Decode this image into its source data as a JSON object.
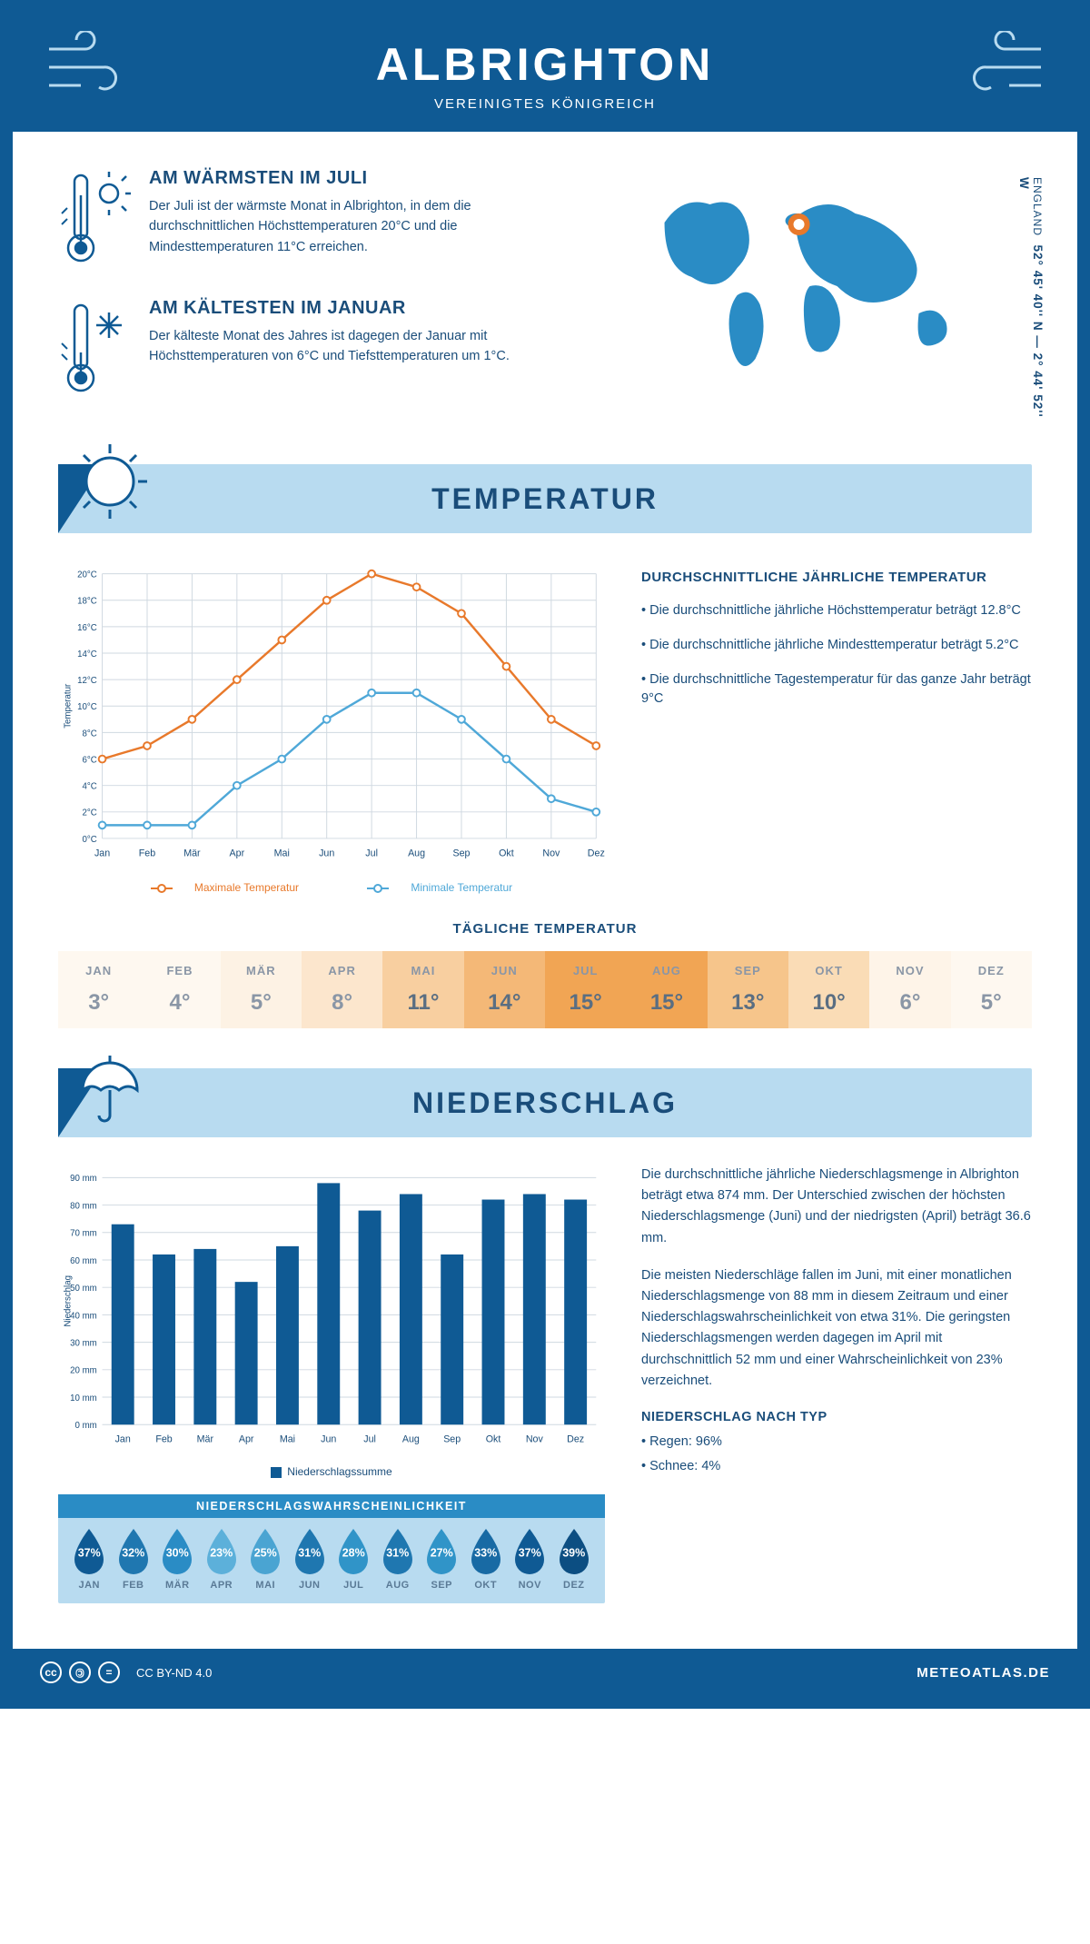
{
  "header": {
    "title": "ALBRIGHTON",
    "subtitle": "VEREINIGTES KÖNIGREICH"
  },
  "coords": {
    "lat": "52° 45' 40'' N — 2° 44' 52'' W",
    "country": "ENGLAND"
  },
  "colors": {
    "primary": "#0f5a94",
    "light": "#b8dbf0",
    "accent": "#2a8cc5",
    "orange": "#e8792b",
    "blue_line": "#4fa8d8",
    "grid": "#cfd8e0",
    "text": "#1a4d7a",
    "muted": "#8a96a6"
  },
  "warmest": {
    "title": "AM WÄRMSTEN IM JULI",
    "text": "Der Juli ist der wärmste Monat in Albrighton, in dem die durchschnittlichen Höchsttemperaturen 20°C und die Mindesttemperaturen 11°C erreichen."
  },
  "coldest": {
    "title": "AM KÄLTESTEN IM JANUAR",
    "text": "Der kälteste Monat des Jahres ist dagegen der Januar mit Höchsttemperaturen von 6°C und Tiefsttemperaturen um 1°C."
  },
  "months_short": [
    "Jan",
    "Feb",
    "Mär",
    "Apr",
    "Mai",
    "Jun",
    "Jul",
    "Aug",
    "Sep",
    "Okt",
    "Nov",
    "Dez"
  ],
  "months_upper": [
    "JAN",
    "FEB",
    "MÄR",
    "APR",
    "MAI",
    "JUN",
    "JUL",
    "AUG",
    "SEP",
    "OKT",
    "NOV",
    "DEZ"
  ],
  "temperature": {
    "section_title": "TEMPERATUR",
    "info_title": "DURCHSCHNITTLICHE JÄHRLICHE TEMPERATUR",
    "bullets": [
      "• Die durchschnittliche jährliche Höchsttemperatur beträgt 12.8°C",
      "• Die durchschnittliche jährliche Mindesttemperatur beträgt 5.2°C",
      "• Die durchschnittliche Tagestemperatur für das ganze Jahr beträgt 9°C"
    ],
    "chart": {
      "type": "line",
      "ylabel": "Temperatur",
      "ylim": [
        0,
        20
      ],
      "ytick_step": 2,
      "ytick_suffix": "°C",
      "max_series": {
        "label": "Maximale Temperatur",
        "color": "#e8792b",
        "values": [
          6,
          7,
          9,
          12,
          15,
          18,
          20,
          19,
          17,
          13,
          9,
          7
        ]
      },
      "min_series": {
        "label": "Minimale Temperatur",
        "color": "#4fa8d8",
        "values": [
          1,
          1,
          1,
          4,
          6,
          9,
          11,
          11,
          9,
          6,
          3,
          2
        ]
      }
    },
    "daily": {
      "title": "TÄGLICHE TEMPERATUR",
      "values": [
        3,
        4,
        5,
        8,
        11,
        14,
        15,
        15,
        13,
        10,
        6,
        5
      ],
      "cell_colors": [
        "#fef8f0",
        "#fef8f0",
        "#fdf2e4",
        "#fce6cd",
        "#f8cfa0",
        "#f4b877",
        "#f1a554",
        "#f1a554",
        "#f6c58b",
        "#fadcb6",
        "#fef4e8",
        "#fef8f0"
      ],
      "text_colors": [
        "#8a96a6",
        "#8a96a6",
        "#8a96a6",
        "#8a96a6",
        "#5a6e82",
        "#5a6e82",
        "#5a6e82",
        "#5a6e82",
        "#5a6e82",
        "#5a6e82",
        "#8a96a6",
        "#8a96a6"
      ]
    }
  },
  "precipitation": {
    "section_title": "NIEDERSCHLAG",
    "chart": {
      "type": "bar",
      "ylabel": "Niederschlag",
      "ylim": [
        0,
        90
      ],
      "ytick_step": 10,
      "ytick_suffix": " mm",
      "series_label": "Niederschlagssumme",
      "bar_color": "#0f5a94",
      "values": [
        73,
        62,
        64,
        52,
        65,
        88,
        78,
        84,
        62,
        82,
        84,
        82
      ]
    },
    "para1": "Die durchschnittliche jährliche Niederschlagsmenge in Albrighton beträgt etwa 874 mm. Der Unterschied zwischen der höchsten Niederschlagsmenge (Juni) und der niedrigsten (April) beträgt 36.6 mm.",
    "para2": "Die meisten Niederschläge fallen im Juni, mit einer monatlichen Niederschlagsmenge von 88 mm in diesem Zeitraum und einer Niederschlagswahrscheinlichkeit von etwa 31%. Die geringsten Niederschlagsmengen werden dagegen im April mit durchschnittlich 52 mm und einer Wahrscheinlichkeit von 23% verzeichnet.",
    "type_title": "NIEDERSCHLAG NACH TYP",
    "type_bullets": [
      "• Regen: 96%",
      "• Schnee: 4%"
    ],
    "probability": {
      "title": "NIEDERSCHLAGSWAHRSCHEINLICHKEIT",
      "values": [
        37,
        32,
        30,
        23,
        25,
        31,
        28,
        31,
        27,
        33,
        37,
        39
      ],
      "drop_colors": [
        "#0f5a94",
        "#1f77b0",
        "#2a8cc5",
        "#5cb0da",
        "#4aa4d2",
        "#1f77b0",
        "#3094c8",
        "#1f77b0",
        "#3094c8",
        "#186aa4",
        "#0f5a94",
        "#0c4e82"
      ]
    }
  },
  "footer": {
    "license": "CC BY-ND 4.0",
    "site": "METEOATLAS.DE"
  }
}
